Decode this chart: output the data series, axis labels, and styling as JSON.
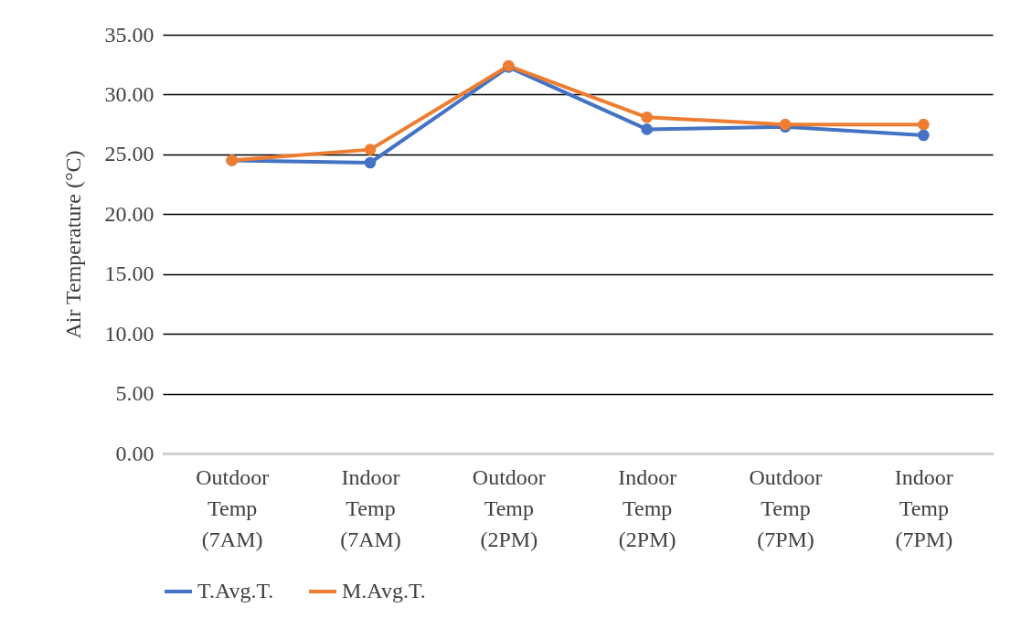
{
  "chart_data": {
    "type": "line",
    "ylabel": "Air Temperature (°C)",
    "categories": [
      "Outdoor Temp (7AM)",
      "Indoor Temp (7AM)",
      "Outdoor Temp (2PM)",
      "Indoor Temp (2PM)",
      "Outdoor Temp (7PM)",
      "Indoor Temp (7PM)"
    ],
    "series": [
      {
        "name": "T.Avg.T.",
        "color": "#4472c4",
        "values": [
          24.5,
          24.3,
          32.3,
          27.1,
          27.3,
          26.6
        ]
      },
      {
        "name": "M.Avg.T.",
        "color": "#ed7d31",
        "values": [
          24.5,
          25.4,
          32.4,
          28.1,
          27.5,
          27.5
        ]
      }
    ],
    "ylim": [
      0,
      35
    ],
    "yticks": [
      {
        "value": 0,
        "label": "0.00"
      },
      {
        "value": 5,
        "label": "5.00"
      },
      {
        "value": 10,
        "label": "10.00"
      },
      {
        "value": 15,
        "label": "15.00"
      },
      {
        "value": 20,
        "label": "20.00"
      },
      {
        "value": 25,
        "label": "25.00"
      },
      {
        "value": 30,
        "label": "30.00"
      },
      {
        "value": 35,
        "label": "35.00"
      }
    ],
    "grid": "y",
    "legend": "bottom",
    "marker": "circle",
    "line_style": "solid"
  }
}
